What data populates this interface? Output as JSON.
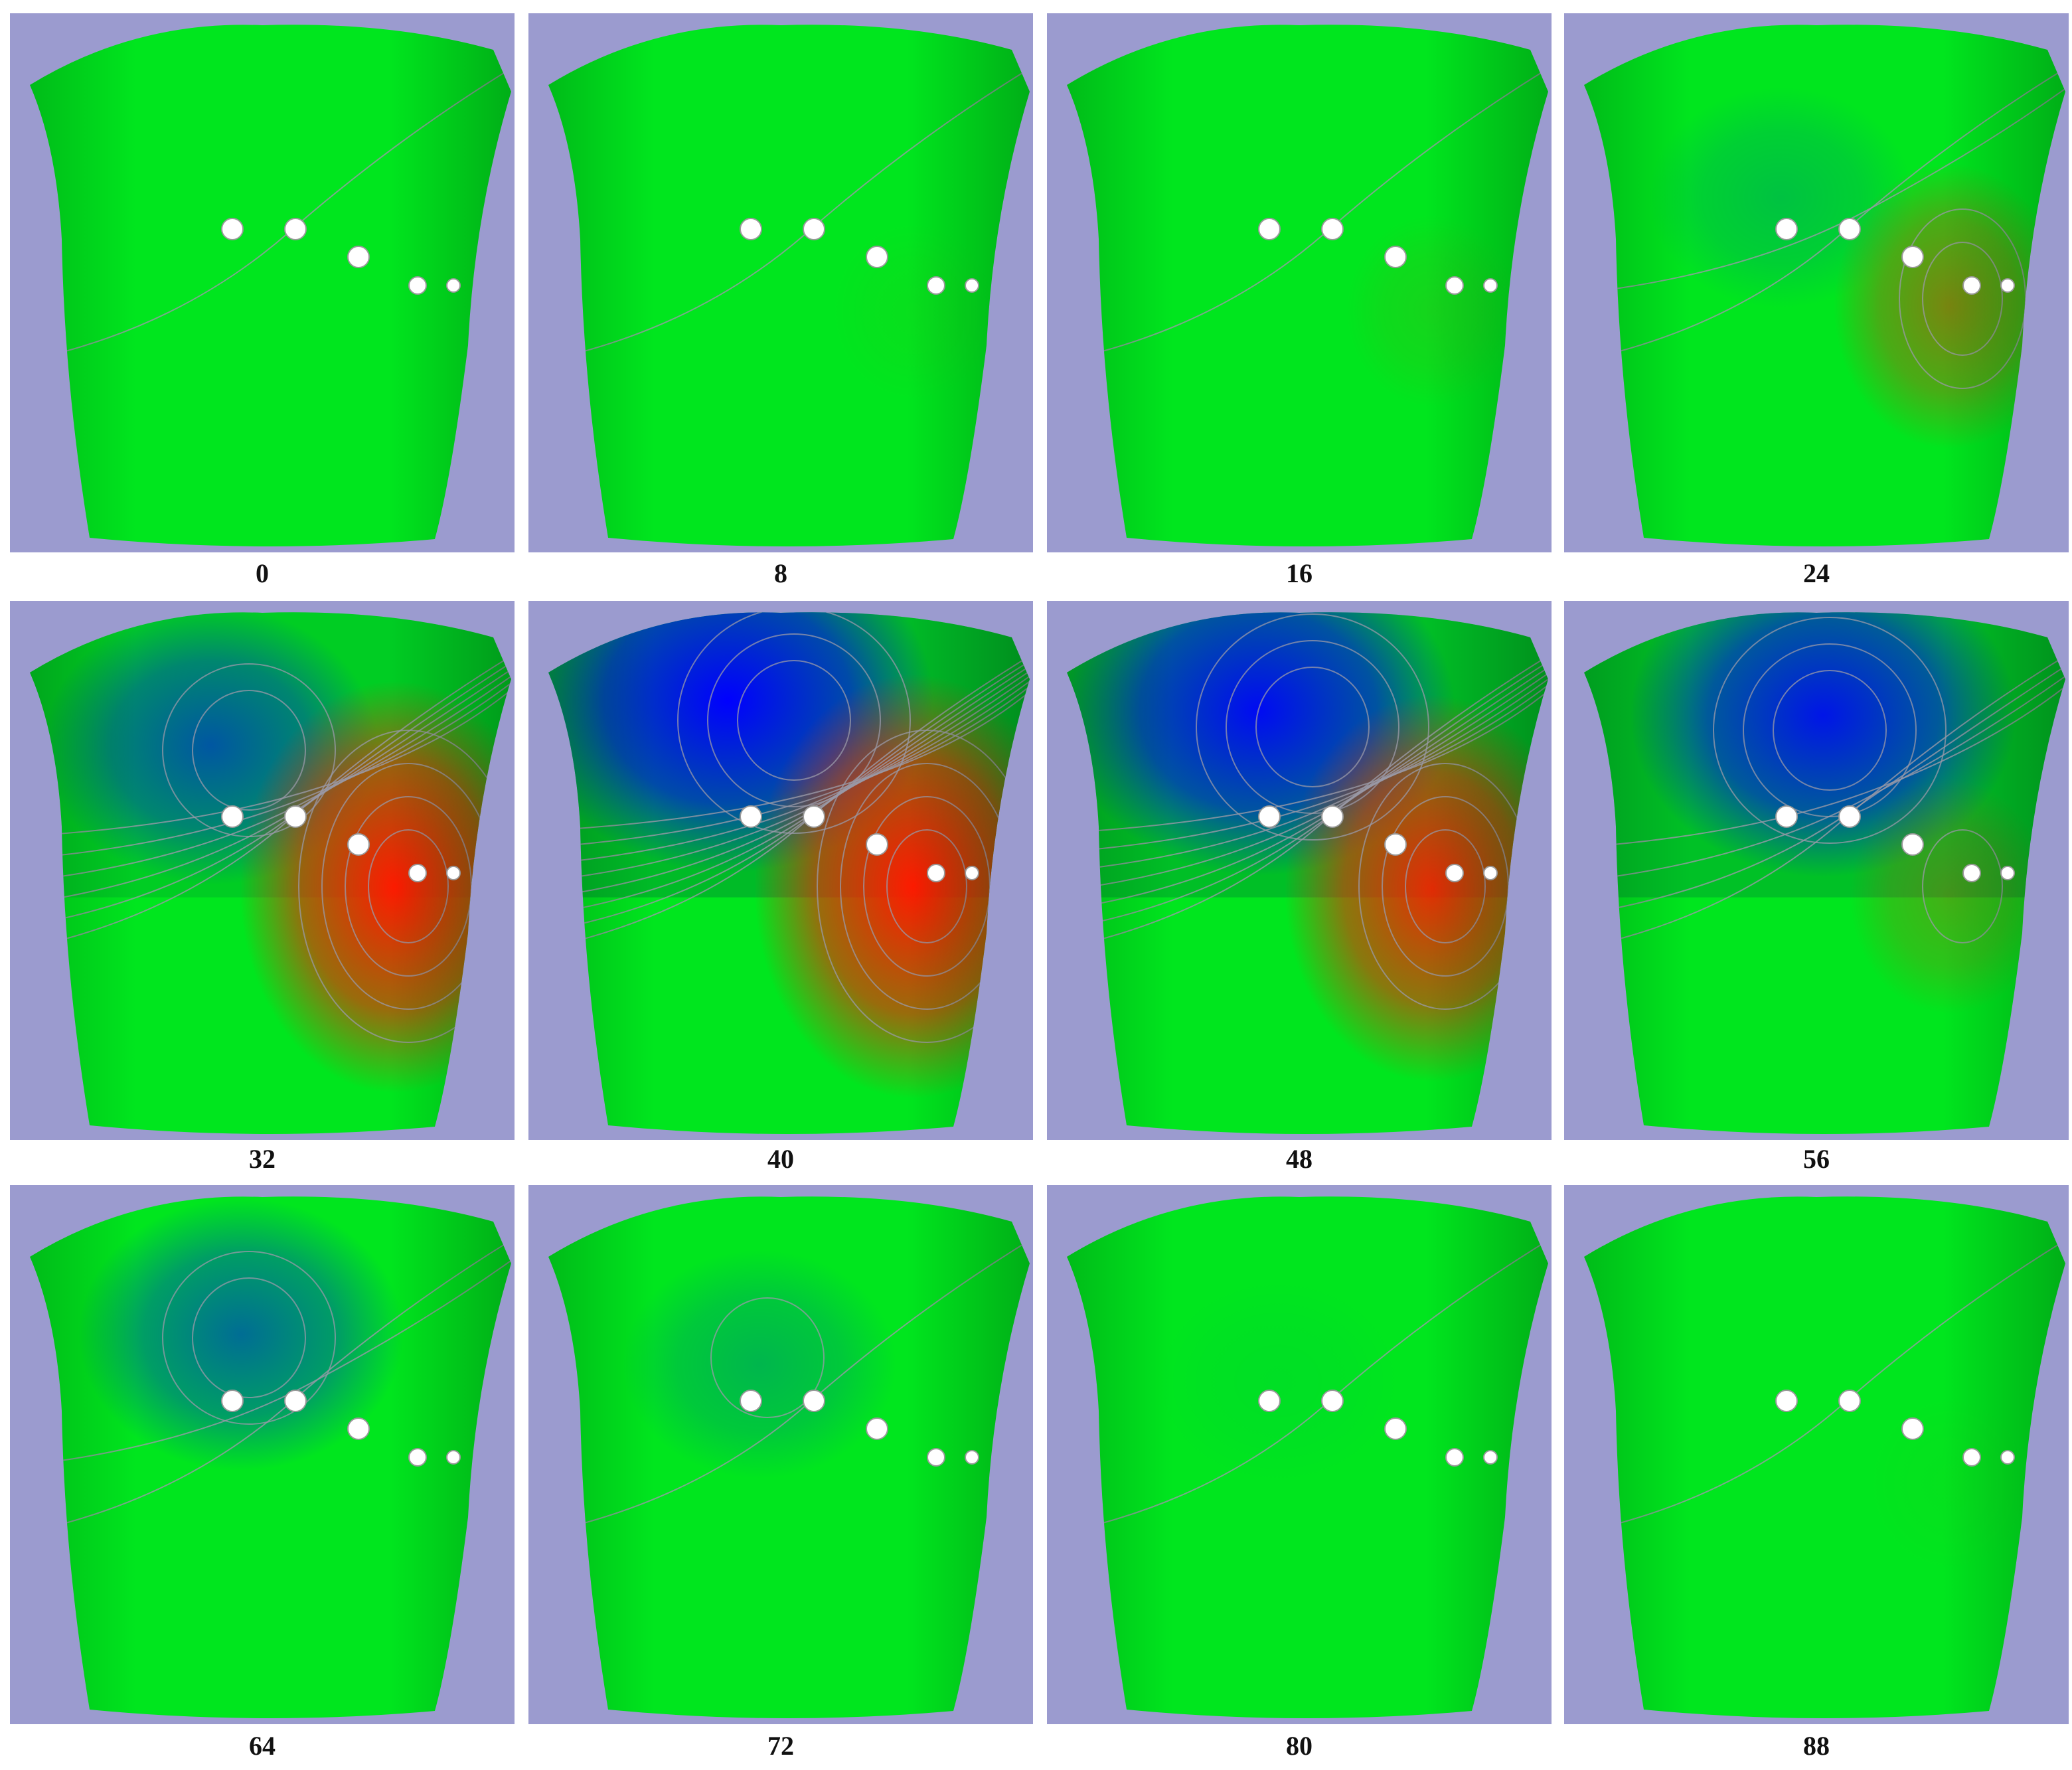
{
  "panels": [
    {
      "label": "0",
      "blue": 0.0,
      "red": 0.0
    },
    {
      "label": "8",
      "blue": 0.0,
      "red": 0.03
    },
    {
      "label": "16",
      "blue": 0.0,
      "red": 0.08
    },
    {
      "label": "24",
      "blue": 0.15,
      "red": 0.45
    },
    {
      "label": "32",
      "blue": 0.55,
      "red": 0.95
    },
    {
      "label": "40",
      "blue": 1.0,
      "red": 1.0
    },
    {
      "label": "48",
      "blue": 0.9,
      "red": 0.85
    },
    {
      "label": "56",
      "blue": 0.85,
      "red": 0.25
    },
    {
      "label": "64",
      "blue": 0.5,
      "red": 0.0
    },
    {
      "label": "72",
      "blue": 0.2,
      "red": 0.0
    },
    {
      "label": "80",
      "blue": 0.03,
      "red": 0.0
    },
    {
      "label": "88",
      "blue": 0.0,
      "red": 0.02
    }
  ],
  "colors": {
    "background": "#9b9bcf",
    "zero": "#00e61e",
    "negative": "#0000ff",
    "positive": "#ff1a00",
    "contour": "#9a9aa8",
    "electrode": "#ffffff"
  }
}
